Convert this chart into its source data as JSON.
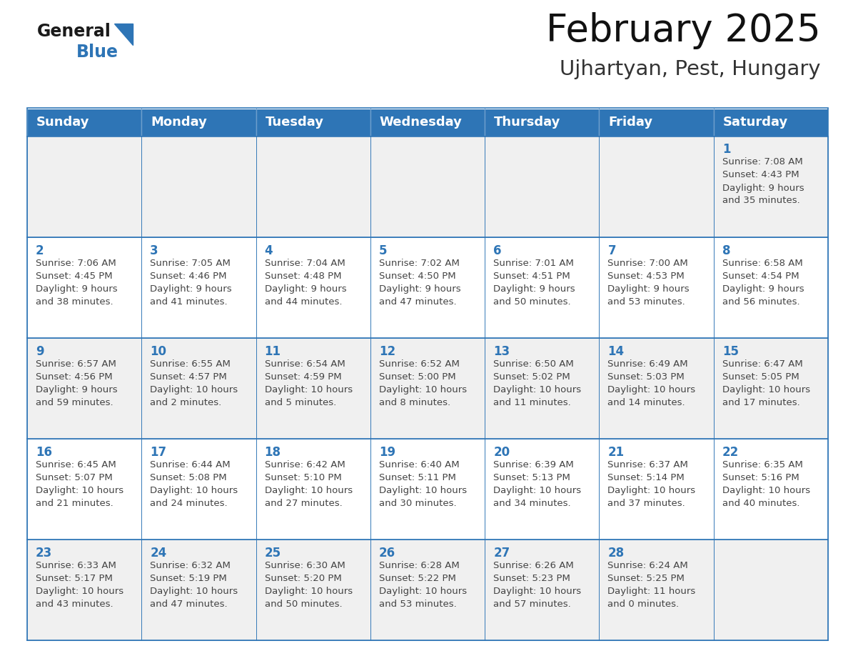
{
  "title": "February 2025",
  "subtitle": "Ujhartyan, Pest, Hungary",
  "header_bg": "#2E75B6",
  "header_text_color": "#FFFFFF",
  "cell_bg_white": "#FFFFFF",
  "cell_bg_gray": "#F0F0F0",
  "border_color": "#2E75B6",
  "text_color": "#444444",
  "day_num_color": "#2E75B6",
  "day_headers": [
    "Sunday",
    "Monday",
    "Tuesday",
    "Wednesday",
    "Thursday",
    "Friday",
    "Saturday"
  ],
  "weeks": [
    [
      {
        "day": "",
        "info": ""
      },
      {
        "day": "",
        "info": ""
      },
      {
        "day": "",
        "info": ""
      },
      {
        "day": "",
        "info": ""
      },
      {
        "day": "",
        "info": ""
      },
      {
        "day": "",
        "info": ""
      },
      {
        "day": "1",
        "info": "Sunrise: 7:08 AM\nSunset: 4:43 PM\nDaylight: 9 hours\nand 35 minutes."
      }
    ],
    [
      {
        "day": "2",
        "info": "Sunrise: 7:06 AM\nSunset: 4:45 PM\nDaylight: 9 hours\nand 38 minutes."
      },
      {
        "day": "3",
        "info": "Sunrise: 7:05 AM\nSunset: 4:46 PM\nDaylight: 9 hours\nand 41 minutes."
      },
      {
        "day": "4",
        "info": "Sunrise: 7:04 AM\nSunset: 4:48 PM\nDaylight: 9 hours\nand 44 minutes."
      },
      {
        "day": "5",
        "info": "Sunrise: 7:02 AM\nSunset: 4:50 PM\nDaylight: 9 hours\nand 47 minutes."
      },
      {
        "day": "6",
        "info": "Sunrise: 7:01 AM\nSunset: 4:51 PM\nDaylight: 9 hours\nand 50 minutes."
      },
      {
        "day": "7",
        "info": "Sunrise: 7:00 AM\nSunset: 4:53 PM\nDaylight: 9 hours\nand 53 minutes."
      },
      {
        "day": "8",
        "info": "Sunrise: 6:58 AM\nSunset: 4:54 PM\nDaylight: 9 hours\nand 56 minutes."
      }
    ],
    [
      {
        "day": "9",
        "info": "Sunrise: 6:57 AM\nSunset: 4:56 PM\nDaylight: 9 hours\nand 59 minutes."
      },
      {
        "day": "10",
        "info": "Sunrise: 6:55 AM\nSunset: 4:57 PM\nDaylight: 10 hours\nand 2 minutes."
      },
      {
        "day": "11",
        "info": "Sunrise: 6:54 AM\nSunset: 4:59 PM\nDaylight: 10 hours\nand 5 minutes."
      },
      {
        "day": "12",
        "info": "Sunrise: 6:52 AM\nSunset: 5:00 PM\nDaylight: 10 hours\nand 8 minutes."
      },
      {
        "day": "13",
        "info": "Sunrise: 6:50 AM\nSunset: 5:02 PM\nDaylight: 10 hours\nand 11 minutes."
      },
      {
        "day": "14",
        "info": "Sunrise: 6:49 AM\nSunset: 5:03 PM\nDaylight: 10 hours\nand 14 minutes."
      },
      {
        "day": "15",
        "info": "Sunrise: 6:47 AM\nSunset: 5:05 PM\nDaylight: 10 hours\nand 17 minutes."
      }
    ],
    [
      {
        "day": "16",
        "info": "Sunrise: 6:45 AM\nSunset: 5:07 PM\nDaylight: 10 hours\nand 21 minutes."
      },
      {
        "day": "17",
        "info": "Sunrise: 6:44 AM\nSunset: 5:08 PM\nDaylight: 10 hours\nand 24 minutes."
      },
      {
        "day": "18",
        "info": "Sunrise: 6:42 AM\nSunset: 5:10 PM\nDaylight: 10 hours\nand 27 minutes."
      },
      {
        "day": "19",
        "info": "Sunrise: 6:40 AM\nSunset: 5:11 PM\nDaylight: 10 hours\nand 30 minutes."
      },
      {
        "day": "20",
        "info": "Sunrise: 6:39 AM\nSunset: 5:13 PM\nDaylight: 10 hours\nand 34 minutes."
      },
      {
        "day": "21",
        "info": "Sunrise: 6:37 AM\nSunset: 5:14 PM\nDaylight: 10 hours\nand 37 minutes."
      },
      {
        "day": "22",
        "info": "Sunrise: 6:35 AM\nSunset: 5:16 PM\nDaylight: 10 hours\nand 40 minutes."
      }
    ],
    [
      {
        "day": "23",
        "info": "Sunrise: 6:33 AM\nSunset: 5:17 PM\nDaylight: 10 hours\nand 43 minutes."
      },
      {
        "day": "24",
        "info": "Sunrise: 6:32 AM\nSunset: 5:19 PM\nDaylight: 10 hours\nand 47 minutes."
      },
      {
        "day": "25",
        "info": "Sunrise: 6:30 AM\nSunset: 5:20 PM\nDaylight: 10 hours\nand 50 minutes."
      },
      {
        "day": "26",
        "info": "Sunrise: 6:28 AM\nSunset: 5:22 PM\nDaylight: 10 hours\nand 53 minutes."
      },
      {
        "day": "27",
        "info": "Sunrise: 6:26 AM\nSunset: 5:23 PM\nDaylight: 10 hours\nand 57 minutes."
      },
      {
        "day": "28",
        "info": "Sunrise: 6:24 AM\nSunset: 5:25 PM\nDaylight: 11 hours\nand 0 minutes."
      },
      {
        "day": "",
        "info": ""
      }
    ]
  ],
  "logo_general_color": "#1a1a1a",
  "logo_blue_color": "#2E75B6",
  "title_fontsize": 38,
  "subtitle_fontsize": 21,
  "header_fontsize": 13,
  "day_num_fontsize": 12,
  "info_fontsize": 9.5,
  "fig_width": 11.88,
  "fig_height": 9.18,
  "dpi": 100
}
